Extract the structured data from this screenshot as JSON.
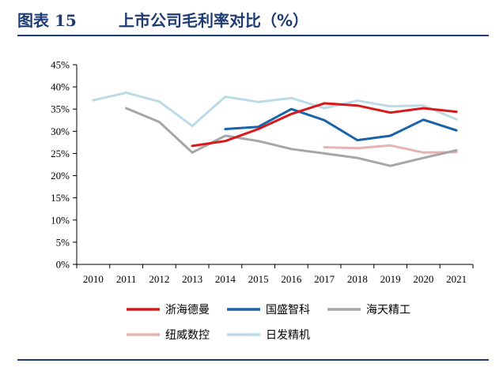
{
  "header": {
    "figure_label": "图表 15",
    "title": "上市公司毛利率对比（%）"
  },
  "colors": {
    "header": "#1f3b73",
    "axis": "#000000"
  },
  "chart_data": {
    "type": "line",
    "title": "上市公司毛利率对比（%）",
    "xlabel": "",
    "ylabel": "",
    "x": [
      "2010",
      "2011",
      "2012",
      "2013",
      "2014",
      "2015",
      "2016",
      "2017",
      "2018",
      "2019",
      "2020",
      "2021"
    ],
    "ylim": [
      0,
      45
    ],
    "yticks": [
      "0%",
      "5%",
      "10%",
      "15%",
      "20%",
      "25%",
      "30%",
      "35%",
      "40%",
      "45%"
    ],
    "grid": false,
    "legend_position": "bottom",
    "series": [
      {
        "name": "浙海德曼",
        "color": "#d7191c",
        "values": [
          null,
          null,
          null,
          26.7,
          27.8,
          30.5,
          33.9,
          36.3,
          35.8,
          34.2,
          35.2,
          34.4
        ]
      },
      {
        "name": "国盛智科",
        "color": "#1a63a8",
        "values": [
          null,
          null,
          null,
          null,
          30.5,
          31.0,
          35.0,
          32.5,
          28.0,
          29.0,
          32.6,
          30.2
        ]
      },
      {
        "name": "海天精工",
        "color": "#a6a6a6",
        "values": [
          null,
          35.2,
          32.1,
          25.2,
          29.0,
          27.8,
          26.0,
          25.0,
          24.0,
          22.2,
          24.0,
          25.7
        ]
      },
      {
        "name": "纽威数控",
        "color": "#e6b3b3",
        "values": [
          null,
          null,
          null,
          null,
          null,
          null,
          null,
          26.4,
          26.2,
          26.8,
          25.2,
          25.3
        ]
      },
      {
        "name": "日发精机",
        "color": "#bcdbe9",
        "values": [
          37.0,
          38.7,
          36.7,
          31.2,
          37.8,
          36.6,
          37.5,
          35.2,
          36.9,
          35.6,
          35.8,
          32.7
        ]
      }
    ]
  }
}
